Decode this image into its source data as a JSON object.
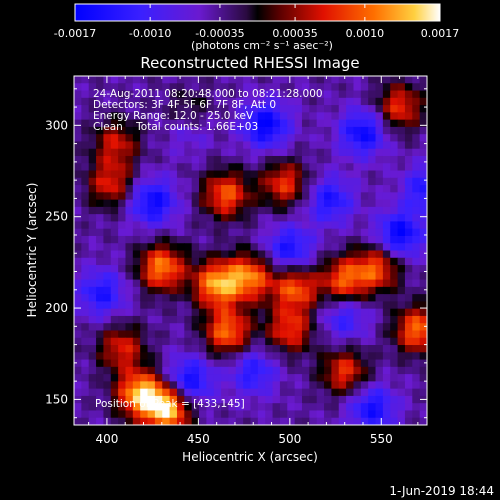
{
  "chart_data": {
    "type": "heatmap",
    "title": "Reconstructed RHESSI Image",
    "xlabel": "Heliocentric X (arcsec)",
    "ylabel": "Heliocentric Y (arcsec)",
    "xlim": [
      382,
      575
    ],
    "ylim": [
      136,
      327
    ],
    "x_ticks": [
      400,
      450,
      500,
      550
    ],
    "y_ticks": [
      150,
      200,
      250,
      300
    ],
    "colorbar": {
      "colormap": "rainbow-black-purple-red-yellow-white",
      "range": [
        -0.0017,
        0.0017
      ],
      "ticks": [
        "-0.0017",
        "-0.0010",
        "-0.00035",
        "0.00035",
        "0.0010",
        "0.0017"
      ],
      "tick_values": [
        -0.0017,
        -0.001,
        -0.00035,
        0.00035,
        0.001,
        0.0017
      ],
      "label": "(photons cm⁻² s⁻¹ asec⁻²)"
    },
    "grid_size": [
      48,
      48
    ],
    "hotspots": [
      {
        "x": 433,
        "y": 145,
        "value": 0.0017
      },
      {
        "x": 418,
        "y": 153,
        "value": 0.0015
      },
      {
        "x": 430,
        "y": 222,
        "value": 0.0013
      },
      {
        "x": 460,
        "y": 213,
        "value": 0.0014
      },
      {
        "x": 478,
        "y": 217,
        "value": 0.0012
      },
      {
        "x": 503,
        "y": 211,
        "value": 0.0011
      },
      {
        "x": 530,
        "y": 215,
        "value": 0.0011
      },
      {
        "x": 548,
        "y": 222,
        "value": 0.001
      },
      {
        "x": 466,
        "y": 187,
        "value": 0.0012
      },
      {
        "x": 500,
        "y": 188,
        "value": 0.0009
      },
      {
        "x": 530,
        "y": 165,
        "value": 0.0009
      },
      {
        "x": 465,
        "y": 262,
        "value": 0.0011
      },
      {
        "x": 497,
        "y": 268,
        "value": 0.0009
      },
      {
        "x": 570,
        "y": 188,
        "value": 0.0012
      },
      {
        "x": 560,
        "y": 310,
        "value": 0.0009
      },
      {
        "x": 402,
        "y": 268,
        "value": 0.0008
      },
      {
        "x": 405,
        "y": 290,
        "value": 0.0007
      },
      {
        "x": 445,
        "y": 305,
        "value": 0.0007
      },
      {
        "x": 408,
        "y": 178,
        "value": 0.0008
      }
    ],
    "coldspots": [
      {
        "x": 487,
        "y": 300,
        "value": -0.0012
      },
      {
        "x": 540,
        "y": 296,
        "value": -0.0011
      },
      {
        "x": 425,
        "y": 258,
        "value": -0.0011
      },
      {
        "x": 500,
        "y": 232,
        "value": -0.001
      },
      {
        "x": 560,
        "y": 240,
        "value": -0.0012
      },
      {
        "x": 445,
        "y": 160,
        "value": -0.0011
      },
      {
        "x": 545,
        "y": 145,
        "value": -0.001
      },
      {
        "x": 480,
        "y": 165,
        "value": -0.0008
      },
      {
        "x": 397,
        "y": 208,
        "value": -0.0009
      },
      {
        "x": 522,
        "y": 259,
        "value": -0.0009
      },
      {
        "x": 575,
        "y": 265,
        "value": -0.0009
      },
      {
        "x": 445,
        "y": 300,
        "value": -0.0008
      },
      {
        "x": 530,
        "y": 195,
        "value": -0.0007
      }
    ],
    "annotations": [
      "24-Aug-2011 08:20:48.000 to 08:21:28.000",
      "Detectors: 3F 4F 5F 6F 7F 8F, Att 0",
      "Energy Range: 12.0 - 25.0 keV",
      "Clean    Total counts: 1.66E+03"
    ],
    "peak_label": "Position of Peak = [433,145]"
  },
  "footer": {
    "date": "1-Jun-2019 18:44"
  }
}
